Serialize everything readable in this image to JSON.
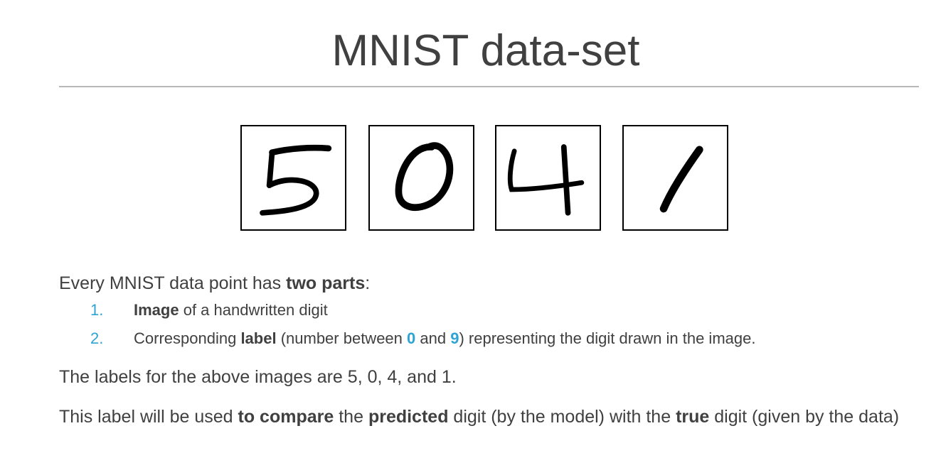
{
  "slide": {
    "title": "MNIST data-set"
  },
  "digits": {
    "images": [
      {
        "depicts": "5",
        "icon": "handwritten-digit-5"
      },
      {
        "depicts": "0",
        "icon": "handwritten-digit-0"
      },
      {
        "depicts": "4",
        "icon": "handwritten-digit-4"
      },
      {
        "depicts": "1",
        "icon": "handwritten-digit-1"
      }
    ]
  },
  "intro": {
    "prefix": "Every MNIST data point has ",
    "bold": "two parts",
    "suffix": ":"
  },
  "list": [
    {
      "number": "1.",
      "bold": "Image",
      "rest": " of a handwritten digit"
    },
    {
      "number": "2.",
      "prefix": "Corresponding ",
      "bold": "label",
      "mid1": " (number between ",
      "low": "0",
      "mid2": " and ",
      "high": "9",
      "suffix": ") representing the digit drawn in the image."
    }
  ],
  "labels_sentence": "The labels for the above images are 5, 0, 4, and 1.",
  "usage": {
    "part1": "This label will be used ",
    "bold1": "to compare",
    "part2": " the ",
    "bold2": "predicted",
    "part3": " digit (by the model) with the ",
    "bold3": "true",
    "part4": " digit (given by the data)"
  },
  "colors": {
    "accent": "#2ea3d6",
    "text": "#404040",
    "rule": "#b8b8b8"
  }
}
